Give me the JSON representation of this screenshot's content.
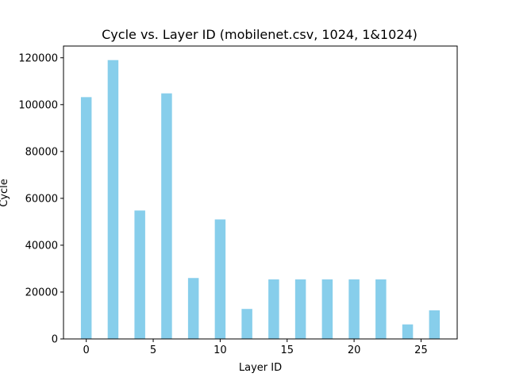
{
  "chart_data": {
    "type": "bar",
    "title": "Cycle vs. Layer ID (mobilenet.csv, 1024, 1&1024)",
    "xlabel": "Layer ID",
    "ylabel": "Cycle",
    "x": [
      0,
      2,
      4,
      6,
      8,
      10,
      12,
      14,
      16,
      18,
      20,
      22,
      24,
      26
    ],
    "values": [
      103200,
      119000,
      54800,
      104800,
      26000,
      51000,
      12800,
      25400,
      25400,
      25400,
      25400,
      25400,
      6200,
      12200
    ],
    "bar_width": 0.8,
    "xlim": [
      -1.7,
      27.7
    ],
    "ylim": [
      0,
      125000
    ],
    "xticks": [
      0,
      5,
      10,
      15,
      20,
      25
    ],
    "yticks": [
      0,
      20000,
      40000,
      60000,
      80000,
      100000,
      120000
    ],
    "bar_color": "#87ceeb",
    "grid": false,
    "legend": "none"
  }
}
